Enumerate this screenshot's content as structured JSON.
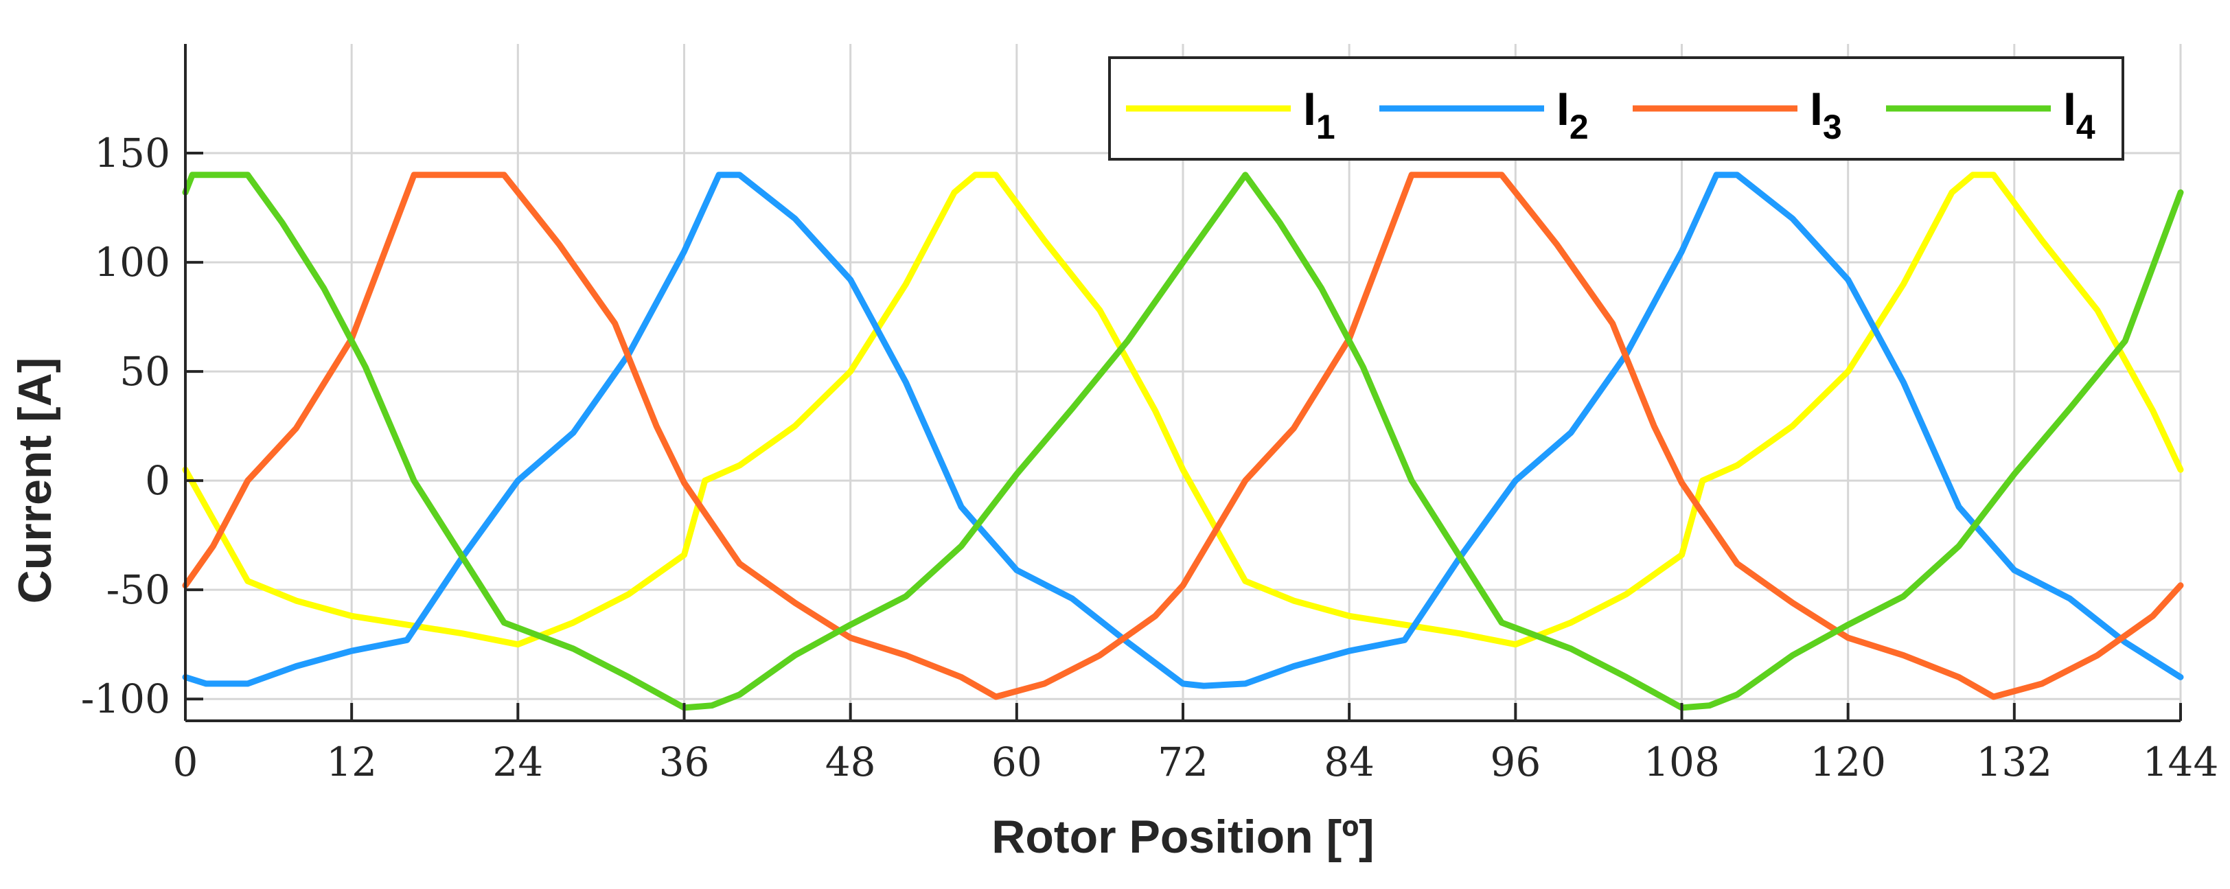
{
  "chart_data": {
    "type": "line",
    "xlabel": "Rotor Position [º]",
    "ylabel": "Current [A]",
    "xlim": [
      0,
      144
    ],
    "ylim": [
      -110,
      200
    ],
    "xticks": [
      0,
      12,
      24,
      36,
      48,
      60,
      72,
      84,
      96,
      108,
      120,
      132,
      144
    ],
    "yticks": [
      -100,
      -50,
      0,
      50,
      100,
      150
    ],
    "grid": true,
    "legend_position": "top-right",
    "series": [
      {
        "name": "I1",
        "label_main": "I",
        "label_sub": "1",
        "color": "#FFFF00",
        "x": [
          0,
          4.5,
          8,
          12,
          16,
          20,
          24,
          28,
          32,
          36,
          37.5,
          40,
          44,
          48,
          52,
          55.5,
          57,
          58.5,
          62,
          66,
          70,
          72,
          76.5,
          80,
          84,
          88,
          92,
          96,
          100,
          104,
          108,
          109.5,
          112,
          116,
          120,
          124,
          127.5,
          129,
          130.5,
          134,
          138,
          142,
          144
        ],
        "y": [
          5,
          -46,
          -55,
          -62,
          -66,
          -70,
          -75,
          -65,
          -52,
          -34,
          0,
          7,
          25,
          50,
          90,
          132,
          140,
          140,
          110,
          78,
          32,
          5,
          -46,
          -55,
          -62,
          -66,
          -70,
          -75,
          -65,
          -52,
          -34,
          0,
          7,
          25,
          50,
          90,
          132,
          140,
          140,
          110,
          78,
          32,
          5
        ]
      },
      {
        "name": "I2",
        "label_main": "I",
        "label_sub": "2",
        "color": "#1F9BFF",
        "x": [
          0,
          1.5,
          4.5,
          8,
          12,
          16,
          20,
          24,
          28,
          32,
          36,
          38.5,
          40,
          44,
          48,
          52,
          56,
          60,
          64,
          68,
          72,
          73.5,
          76.5,
          80,
          84,
          88,
          92,
          96,
          100,
          104,
          108,
          110.5,
          112,
          116,
          120,
          124,
          128,
          132,
          136,
          140,
          144
        ],
        "y": [
          -90,
          -93,
          -93,
          -85,
          -78,
          -73,
          -35,
          0,
          22,
          58,
          105,
          140,
          140,
          120,
          92,
          45,
          -12,
          -41,
          -54,
          -74,
          -93,
          -94,
          -93,
          -85,
          -78,
          -73,
          -35,
          0,
          22,
          58,
          105,
          140,
          140,
          120,
          92,
          45,
          -12,
          -41,
          -54,
          -74,
          -90
        ]
      },
      {
        "name": "I3",
        "label_main": "I",
        "label_sub": "3",
        "color": "#FF6A28",
        "x": [
          0,
          2,
          4.5,
          8,
          12,
          16.5,
          19,
          23,
          27,
          31,
          34,
          36,
          40,
          44,
          48,
          52,
          56,
          58.5,
          62,
          66,
          70,
          72,
          76.5,
          80,
          84,
          88.5,
          91,
          95,
          99,
          103,
          106,
          108,
          112,
          116,
          120,
          124,
          128,
          130.5,
          134,
          138,
          142,
          144
        ],
        "y": [
          -48,
          -30,
          0,
          24,
          65,
          140,
          140,
          140,
          108,
          72,
          25,
          -1,
          -38,
          -56,
          -72,
          -80,
          -90,
          -99,
          -93,
          -80,
          -62,
          -48,
          0,
          24,
          65,
          140,
          140,
          140,
          108,
          72,
          25,
          -1,
          -38,
          -56,
          -72,
          -80,
          -90,
          -99,
          -93,
          -80,
          -62,
          -48
        ]
      },
      {
        "name": "I4",
        "label_main": "I",
        "label_sub": "4",
        "color": "#5CD11E",
        "x": [
          0,
          0.5,
          4.5,
          7,
          10,
          13,
          16.5,
          20,
          23,
          28,
          32,
          36,
          38,
          40,
          44,
          48,
          52,
          56,
          60,
          64,
          68,
          72,
          76.5,
          79,
          82,
          85,
          88.5,
          92,
          95,
          100,
          104,
          108,
          110,
          112,
          116,
          120,
          124,
          128,
          132,
          136,
          140,
          144
        ],
        "y": [
          132,
          140,
          140,
          118,
          88,
          52,
          0,
          -35,
          -65,
          -77,
          -90,
          -104,
          -103,
          -98,
          -80,
          -66,
          -53,
          -30,
          3,
          33,
          64,
          100,
          140,
          118,
          88,
          52,
          0,
          -35,
          -65,
          -77,
          -90,
          -104,
          -103,
          -98,
          -80,
          -66,
          -53,
          -30,
          3,
          33,
          64,
          132
        ]
      }
    ]
  }
}
